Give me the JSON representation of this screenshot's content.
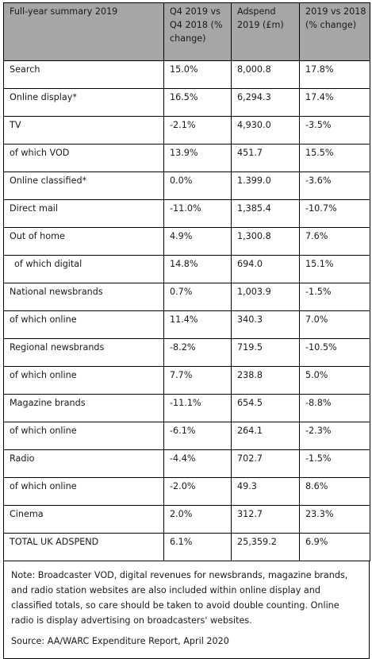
{
  "header": {
    "col1": "Full-year summary 2019",
    "col2": "Q4 2019 vs Q4 2018 (% change)",
    "col3": "Adspend 2019 (£m)",
    "col4": "2019 vs 2018 (% change)"
  },
  "rows": [
    {
      "label": "Search",
      "q4": "15.0%",
      "adspend": "8,000.8",
      "yoy": "17.8%"
    },
    {
      "label": "Online display*",
      "q4": "16.5%",
      "adspend": "6,294.3",
      "yoy": "17.4%"
    },
    {
      "label": "TV",
      "q4": "-2.1%",
      "adspend": "4,930.0",
      "yoy": "-3.5%"
    },
    {
      "label": "of which VOD",
      "q4": "13.9%",
      "adspend": "451.7",
      "yoy": "15.5%"
    },
    {
      "label": "Online classified*",
      "q4": "0.0%",
      "adspend": "1.399.0",
      "yoy": "-3.6%"
    },
    {
      "label": "Direct mail",
      "q4": "-11.0%",
      "adspend": "1,385.4",
      "yoy": "-10.7%"
    },
    {
      "label": "Out of home",
      "q4": "4.9%",
      "adspend": "1,300.8",
      "yoy": "7.6%"
    },
    {
      "label": "of which digital",
      "q4": "14.8%",
      "adspend": "694.0",
      "yoy": "15.1%"
    },
    {
      "label": "National newsbrands",
      "q4": "0.7%",
      "adspend": "1,003.9",
      "yoy": "-1.5%"
    },
    {
      "label": "of which online",
      "q4": "11.4%",
      "adspend": "340.3",
      "yoy": "7.0%"
    },
    {
      "label": "Regional newsbrands",
      "q4": "-8.2%",
      "adspend": "719.5",
      "yoy": "-10.5%"
    },
    {
      "label": "of which online",
      "q4": "7.7%",
      "adspend": "238.8",
      "yoy": "5.0%"
    },
    {
      "label": "Magazine brands",
      "q4": "-11.1%",
      "adspend": "654.5",
      "yoy": "-8.8%"
    },
    {
      "label": "of which online",
      "q4": "-6.1%",
      "adspend": "264.1",
      "yoy": "-2.3%"
    },
    {
      "label": "Radio",
      "q4": "-4.4%",
      "adspend": "702.7",
      "yoy": "-1.5%"
    },
    {
      "label": "of which online",
      "q4": "-2.0%",
      "adspend": "49.3",
      "yoy": "8.6%"
    },
    {
      "label": "Cinema",
      "q4": "2.0%",
      "adspend": "312.7",
      "yoy": "23.3%"
    },
    {
      "label": "TOTAL UK ADSPEND",
      "q4": "6.1%",
      "adspend": "25,359.2",
      "yoy": "6.9%"
    }
  ],
  "note": "Note: Broadcaster VOD, digital revenues for newsbrands, magazine brands, and radio station websites are also included within online display and classified totals, so care should be taken to avoid double counting. Online radio is display advertising on broadcasters' websites.",
  "source": "Source: AA/WARC Expenditure Report, April 2020"
}
